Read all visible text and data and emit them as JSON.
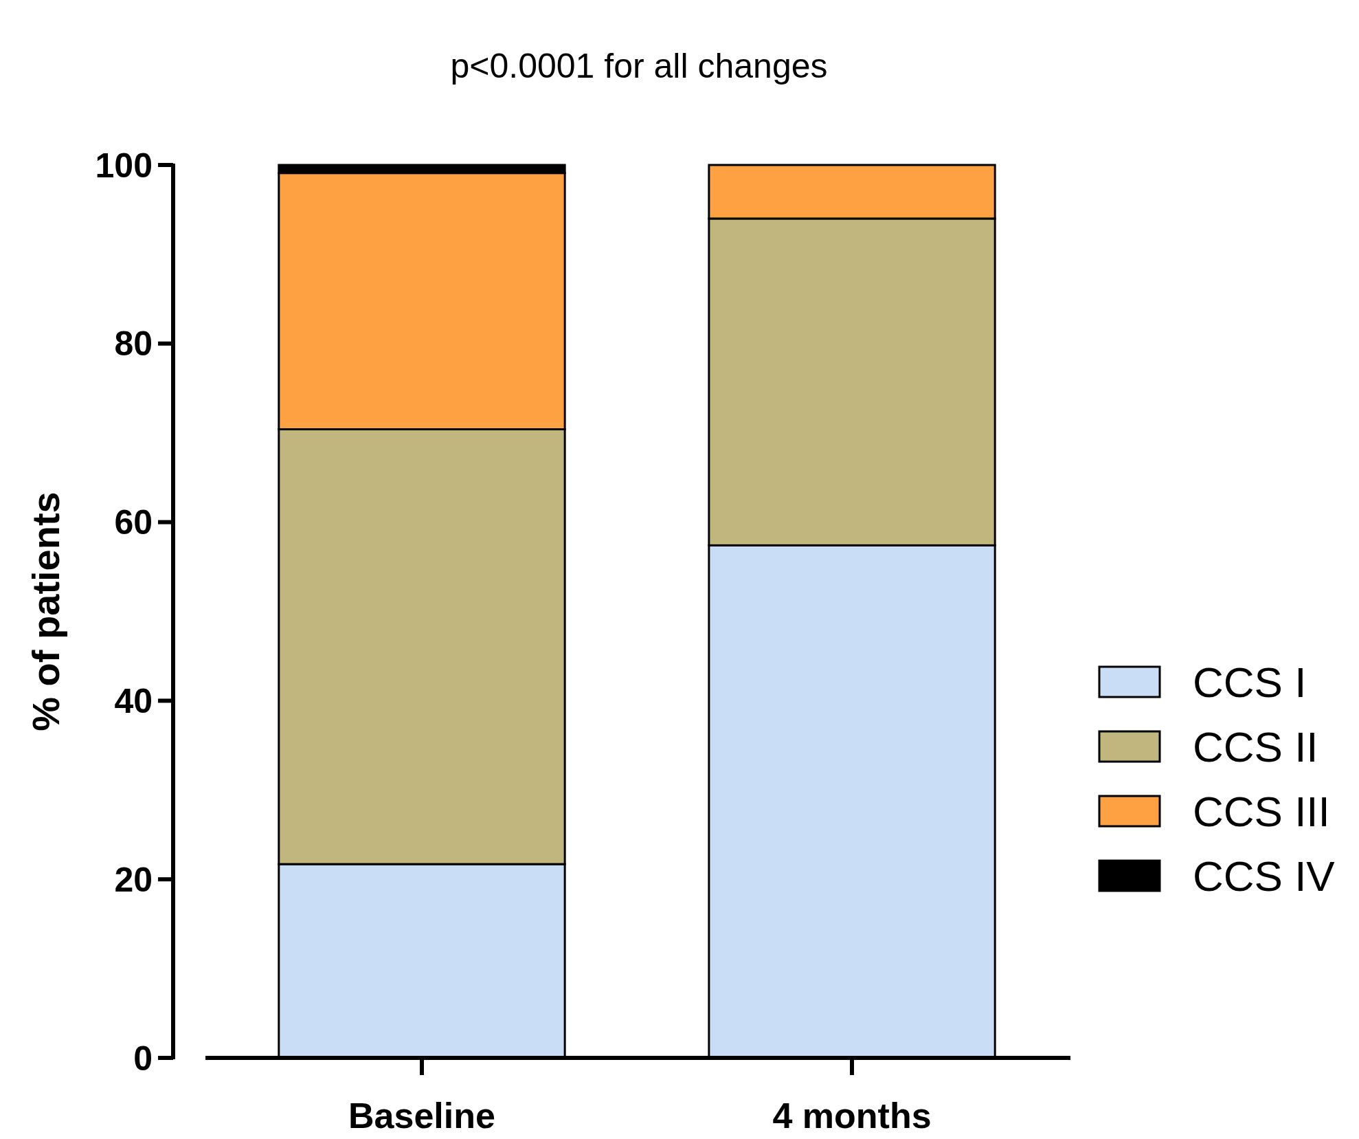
{
  "chart_data": {
    "type": "bar",
    "title": "p<0.0001 for all changes",
    "ylabel": "% of patients",
    "categories": [
      "Baseline",
      "4 months"
    ],
    "stacked": true,
    "ylim": [
      0,
      100
    ],
    "yticks": [
      0,
      20,
      40,
      60,
      80,
      100
    ],
    "grid": false,
    "legend": "right",
    "series": [
      {
        "name": "CCS I",
        "color": "#c9ddf6",
        "values": [
          21.7,
          57.4
        ]
      },
      {
        "name": "CCS II",
        "color": "#c1b67d",
        "values": [
          48.7,
          36.6
        ]
      },
      {
        "name": "CCS III",
        "color": "#fda142",
        "values": [
          28.7,
          6.0
        ]
      },
      {
        "name": "CCS IV",
        "color": "#000000",
        "values": [
          0.9,
          0
        ]
      }
    ]
  }
}
